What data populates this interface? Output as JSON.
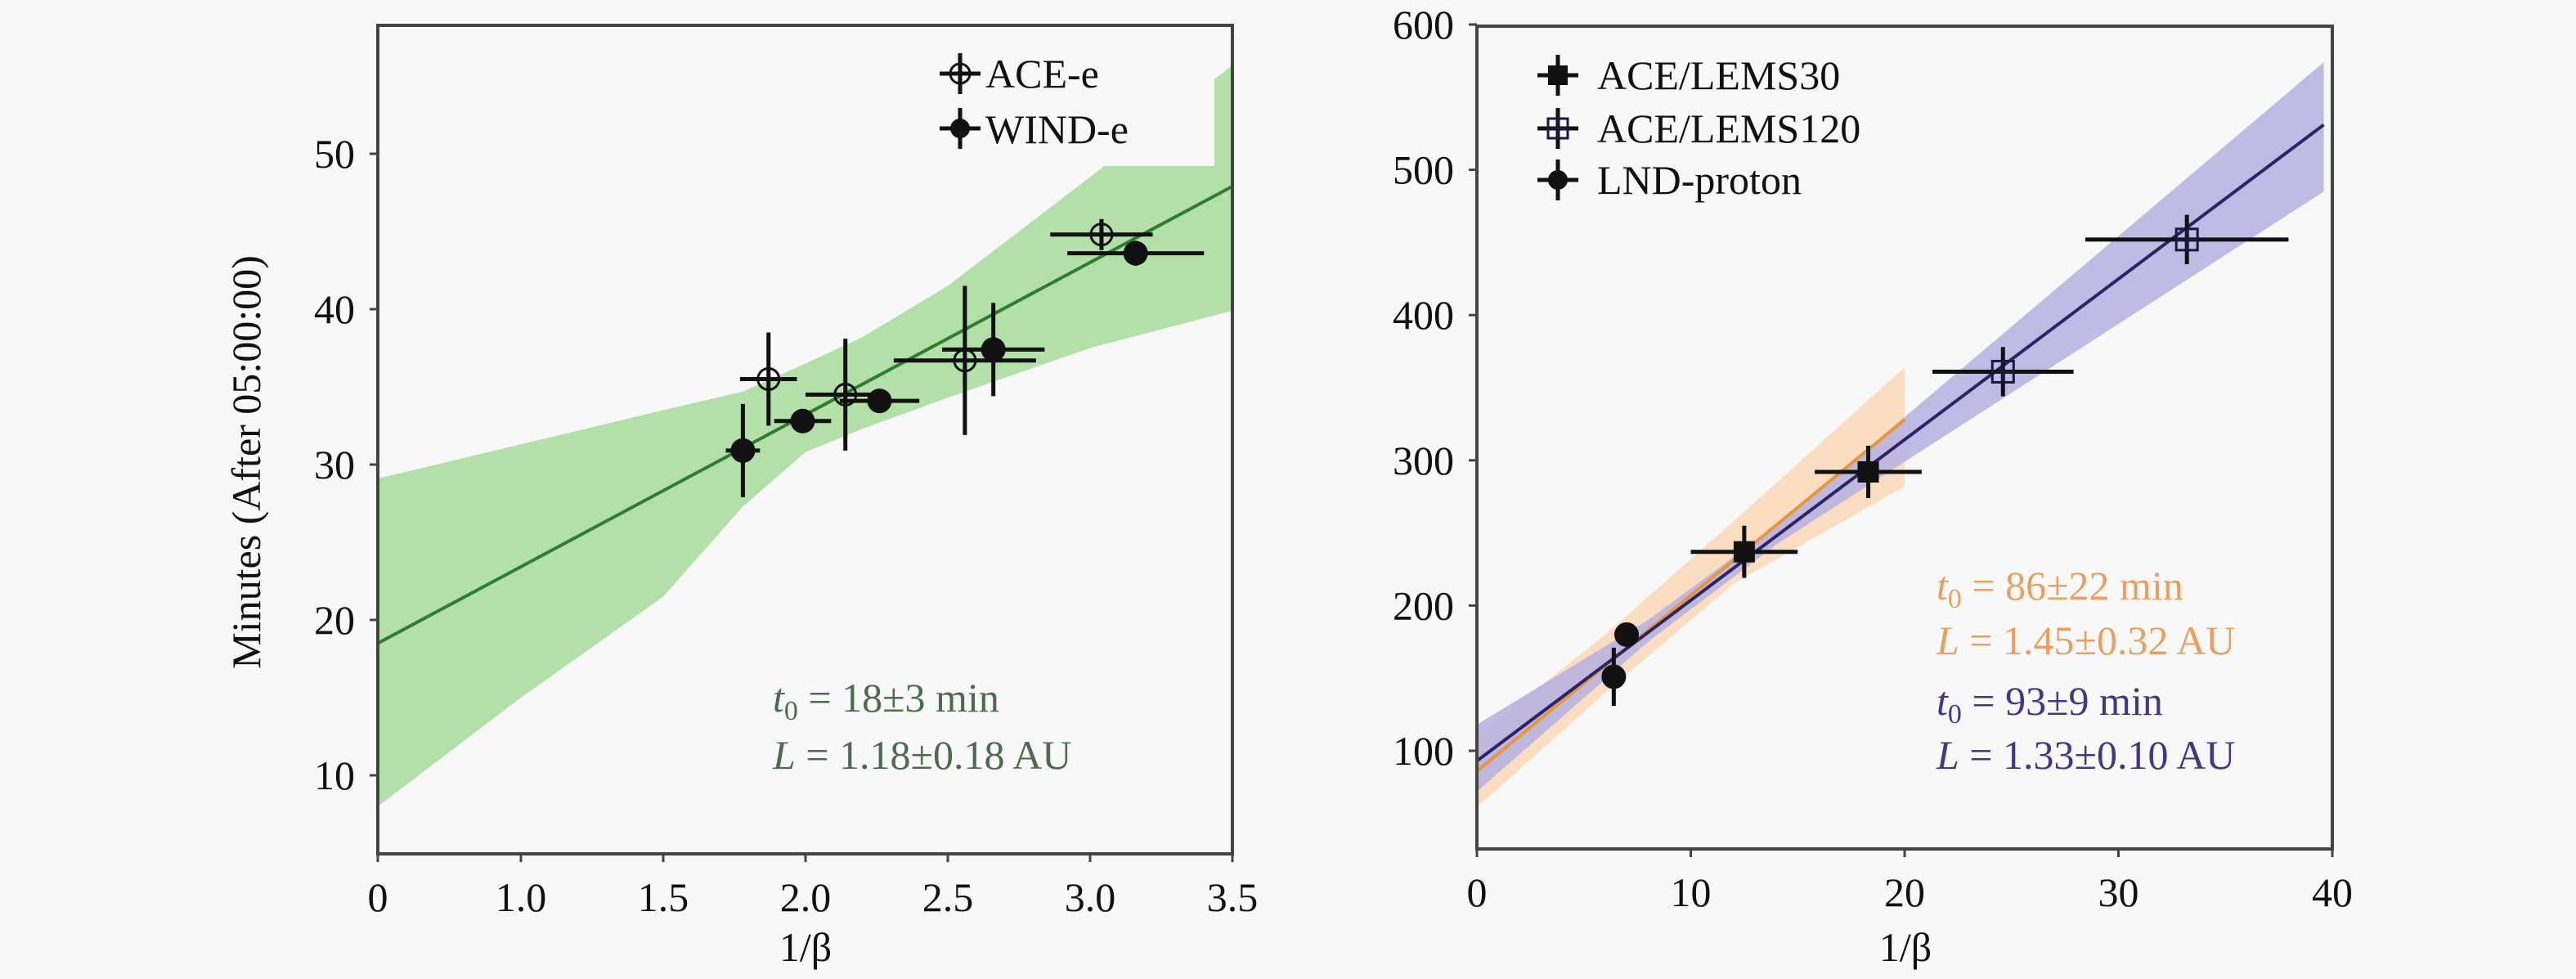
{
  "chart_data": [
    {
      "type": "scatter",
      "title": "",
      "xlabel": "1/β",
      "ylabel": "Minutes (After 05:00:00)",
      "xticks": [
        0,
        1.0,
        1.5,
        2.0,
        2.5,
        3.0,
        3.5
      ],
      "xtick_labels": [
        "0",
        "1.0",
        "1.5",
        "2.0",
        "2.5",
        "3.0",
        "3.5"
      ],
      "yticks": [
        10,
        20,
        30,
        40,
        50
      ],
      "ytick_labels": [
        "10",
        "20",
        "30",
        "40",
        "50"
      ],
      "ylim": [
        5,
        58.3
      ],
      "grid": false,
      "legend_position": "top-right",
      "series": [
        {
          "name": "ACE-e",
          "marker": "open-circle",
          "points": [
            {
              "x": 1.87,
              "y": 35.5,
              "xerr": 0.1,
              "yerr": 3.0
            },
            {
              "x": 2.14,
              "y": 34.5,
              "xerr": 0.14,
              "yerr": 3.6
            },
            {
              "x": 2.56,
              "y": 36.7,
              "xerr": 0.25,
              "yerr": 4.8
            },
            {
              "x": 3.04,
              "y": 44.8,
              "xerr": 0.18,
              "yerr": 1.0
            }
          ]
        },
        {
          "name": "WIND-e",
          "marker": "filled-circle",
          "points": [
            {
              "x": 1.78,
              "y": 30.9,
              "xerr": 0.06,
              "yerr": 3.0
            },
            {
              "x": 1.99,
              "y": 32.8,
              "xerr": 0.1,
              "yerr": 0.6
            },
            {
              "x": 2.26,
              "y": 34.1,
              "xerr": 0.14,
              "yerr": 0.7
            },
            {
              "x": 2.66,
              "y": 37.4,
              "xerr": 0.18,
              "yerr": 3.0
            },
            {
              "x": 3.16,
              "y": 43.6,
              "xerr": 0.24,
              "yerr": 0.8
            }
          ]
        }
      ],
      "fits": [
        {
          "name": "fit",
          "color": "#2e7d32",
          "band_color": "#b3e0a8",
          "line": [
            [
              0,
              18.5
            ],
            [
              3.5,
              47.9
            ]
          ],
          "band": [
            {
              "x": 0,
              "lo": 8.0,
              "hi": 29.1
            },
            {
              "x": 1.0,
              "lo": 15.0,
              "hi": 31.3
            },
            {
              "x": 1.5,
              "lo": 21.5,
              "hi": 33.5
            },
            {
              "x": 1.78,
              "lo": 27.3,
              "hi": 34.7
            },
            {
              "x": 2.0,
              "lo": 30.8,
              "hi": 36.5
            },
            {
              "x": 2.2,
              "lo": 32.3,
              "hi": 38.2
            },
            {
              "x": 2.5,
              "lo": 34.3,
              "hi": 41.5
            },
            {
              "x": 3.0,
              "lo": 37.5,
              "hi": 48.5
            },
            {
              "x": 3.5,
              "lo": 39.9,
              "hi": 55.7
            }
          ]
        }
      ],
      "annotations": [
        {
          "label": "t",
          "sub": "0",
          "text": " = 18±3 min",
          "color": "#4f6b4f"
        },
        {
          "label": "L",
          "sub": "",
          "text": " = 1.18±0.18 AU",
          "color": "#4f6b4f"
        }
      ]
    },
    {
      "type": "scatter",
      "title": "",
      "xlabel": "1/β",
      "ylabel": "",
      "xticks": [
        0,
        10,
        20,
        30,
        40
      ],
      "xtick_labels": [
        "0",
        "10",
        "20",
        "30",
        "40"
      ],
      "yticks": [
        100,
        200,
        300,
        400,
        500,
        600
      ],
      "ytick_labels": [
        "100",
        "200",
        "300",
        "400",
        "500",
        "600"
      ],
      "xlim": [
        0,
        40
      ],
      "ylim": [
        32.5,
        600
      ],
      "grid": false,
      "legend_position": "top-left",
      "series": [
        {
          "name": "ACE/LEMS30",
          "marker": "filled-square",
          "points": [
            {
              "x": 12.5,
              "y": 237,
              "xerr": 2.5,
              "yerr": 18
            },
            {
              "x": 18.3,
              "y": 292,
              "xerr": 2.5,
              "yerr": 18
            }
          ]
        },
        {
          "name": "ACE/LEMS120",
          "marker": "open-square",
          "points": [
            {
              "x": 24.6,
              "y": 361,
              "xerr": 3.3,
              "yerr": 17
            },
            {
              "x": 33.2,
              "y": 452,
              "xerr": 4.75,
              "yerr": 17
            }
          ]
        },
        {
          "name": "LND-proton",
          "marker": "filled-circle",
          "points": [
            {
              "x": 7.0,
              "y": 180,
              "xerr": 0,
              "yerr": 0
            },
            {
              "x": 6.4,
              "y": 151,
              "xerr": 0,
              "yerr": 20
            }
          ]
        }
      ],
      "fits": [
        {
          "name": "orange-fit",
          "color": "#e8963c",
          "band_color": "#fcd9b8",
          "line": [
            [
              0,
              86
            ],
            [
              20,
              328
            ]
          ],
          "band": [
            {
              "x": 0,
              "lo": 61,
              "hi": 110
            },
            {
              "x": 6,
              "lo": 140,
              "hi": 180
            },
            {
              "x": 12,
              "lo": 215,
              "hi": 258
            },
            {
              "x": 20,
              "lo": 282,
              "hi": 364
            }
          ]
        },
        {
          "name": "blue-fit",
          "color": "#2b2466",
          "band_color": "#b4b0e0",
          "line": [
            [
              0,
              93
            ],
            [
              39.6,
              531
            ]
          ],
          "band": [
            {
              "x": 0,
              "lo": 72,
              "hi": 118
            },
            {
              "x": 8,
              "lo": 175,
              "hi": 190
            },
            {
              "x": 14,
              "lo": 242,
              "hi": 255
            },
            {
              "x": 39.6,
              "lo": 485,
              "hi": 574
            }
          ]
        }
      ],
      "annotations": [
        {
          "label": "t",
          "sub": "0",
          "text": " = 86±22 min",
          "color": "#e8a060"
        },
        {
          "label": "L",
          "sub": "",
          "text": " = 1.45±0.32 AU",
          "color": "#e8a060"
        },
        {
          "label": "t",
          "sub": "0",
          "text": " = 93±9 min",
          "color": "#3f3888"
        },
        {
          "label": "L",
          "sub": "",
          "text": " = 1.33±0.10 AU",
          "color": "#3f3888"
        }
      ]
    }
  ]
}
